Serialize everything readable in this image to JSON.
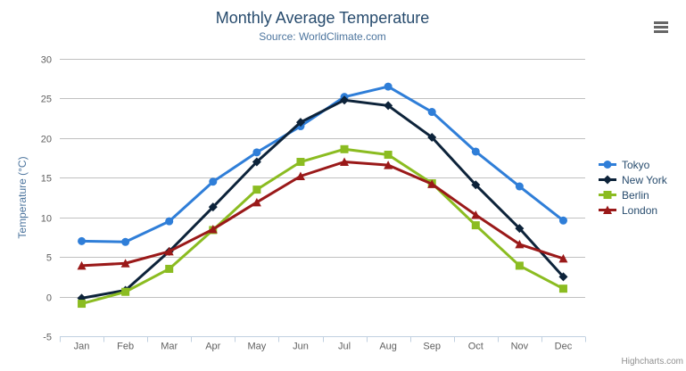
{
  "credit": {
    "label": "Highcharts.com"
  },
  "export_menu": {
    "icon": "hamburger-icon"
  },
  "chart_data": {
    "type": "line",
    "title": "Monthly Average Temperature",
    "subtitle": "Source: WorldClimate.com",
    "xlabel": "",
    "ylabel": "Temperature (°C)",
    "ylim": [
      -5,
      30
    ],
    "yticks": [
      -5,
      0,
      5,
      10,
      15,
      20,
      25,
      30
    ],
    "grid": true,
    "legend_position": "right",
    "categories": [
      "Jan",
      "Feb",
      "Mar",
      "Apr",
      "May",
      "Jun",
      "Jul",
      "Aug",
      "Sep",
      "Oct",
      "Nov",
      "Dec"
    ],
    "series": [
      {
        "name": "Tokyo",
        "color": "#2f7ed8",
        "marker": "circle",
        "values": [
          7.0,
          6.9,
          9.5,
          14.5,
          18.2,
          21.5,
          25.2,
          26.5,
          23.3,
          18.3,
          13.9,
          9.6
        ]
      },
      {
        "name": "New York",
        "color": "#0d233a",
        "marker": "diamond",
        "values": [
          -0.2,
          0.8,
          5.7,
          11.3,
          17.0,
          22.0,
          24.8,
          24.1,
          20.1,
          14.1,
          8.6,
          2.5
        ]
      },
      {
        "name": "Berlin",
        "color": "#8bbc21",
        "marker": "square",
        "values": [
          -0.9,
          0.6,
          3.5,
          8.4,
          13.5,
          17.0,
          18.6,
          17.9,
          14.3,
          9.0,
          3.9,
          1.0
        ]
      },
      {
        "name": "London",
        "color": "#9a1919",
        "marker": "triangle",
        "values": [
          3.9,
          4.2,
          5.7,
          8.5,
          11.9,
          15.2,
          17.0,
          16.6,
          14.2,
          10.3,
          6.6,
          4.8
        ]
      }
    ],
    "axis_colors": {
      "grid": "#c0c0c0",
      "axis_line": "#c0d0e0",
      "tick_label": "#606060",
      "axis_title": "#4d759e"
    }
  }
}
